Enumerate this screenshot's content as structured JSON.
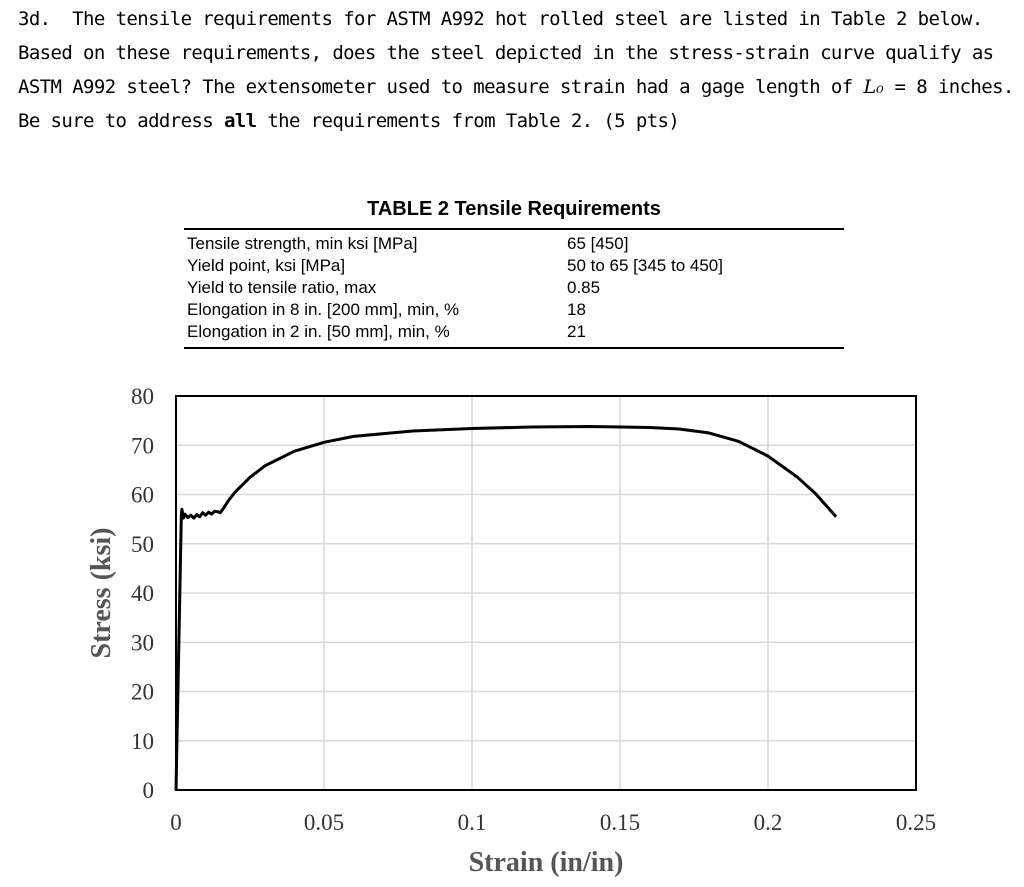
{
  "question": {
    "number": "3d.",
    "text_1": "The tensile requirements for ASTM A992 hot rolled steel are listed in Table 2 below. Based on these requirements, does the steel depicted in the stress-strain curve qualify as ASTM A992 steel? The extensometer used to measure strain had a gage length of",
    "lo_symbol": "L₀",
    "text_2": "= 8 inches. Be sure to address",
    "emphasis": "all",
    "text_3": "the requirements from Table 2. (5 pts)"
  },
  "table": {
    "title": "TABLE 2 Tensile Requirements",
    "rows": [
      {
        "property": "Tensile strength, min ksi [MPa]",
        "value": "65 [450]"
      },
      {
        "property": "Yield point, ksi [MPa]",
        "value": "50 to 65 [345 to 450]"
      },
      {
        "property": "Yield to tensile ratio, max",
        "value": "0.85"
      },
      {
        "property": "Elongation in 8 in. [200 mm], min, %",
        "value": "18"
      },
      {
        "property": "Elongation in 2 in. [50 mm], min, %",
        "value": "21"
      }
    ]
  },
  "chart_data": {
    "type": "line",
    "xlabel": "Strain (in/in)",
    "ylabel": "Stress (ksi)",
    "xlim": [
      0,
      0.25
    ],
    "ylim": [
      0,
      80
    ],
    "xticks": [
      "0",
      "0.05",
      "0.1",
      "0.15",
      "0.2",
      "0.25"
    ],
    "yticks": [
      "0",
      "10",
      "20",
      "30",
      "40",
      "50",
      "60",
      "70",
      "80"
    ],
    "grid": true,
    "line_color": "#000000",
    "series": [
      {
        "x": [
          0,
          0.0018,
          0.002,
          0.0025,
          0.003,
          0.004,
          0.005,
          0.006,
          0.007,
          0.008,
          0.009,
          0.01,
          0.011,
          0.012,
          0.013,
          0.014,
          0.015,
          0.016,
          0.018,
          0.02,
          0.025,
          0.03,
          0.04,
          0.05,
          0.06,
          0.08,
          0.1,
          0.12,
          0.14,
          0.16,
          0.17,
          0.18,
          0.19,
          0.2,
          0.21,
          0.216,
          0.22,
          0.223
        ],
        "y": [
          0,
          55.5,
          57.0,
          55.2,
          56.0,
          55.3,
          55.8,
          55.2,
          55.9,
          55.5,
          56.3,
          55.8,
          56.4,
          56.0,
          56.6,
          56.5,
          56.3,
          57.2,
          59.0,
          60.5,
          63.5,
          65.8,
          68.8,
          70.6,
          71.8,
          72.9,
          73.4,
          73.7,
          73.8,
          73.6,
          73.3,
          72.5,
          70.8,
          67.8,
          63.5,
          60.2,
          57.5,
          55.5
        ]
      }
    ]
  }
}
